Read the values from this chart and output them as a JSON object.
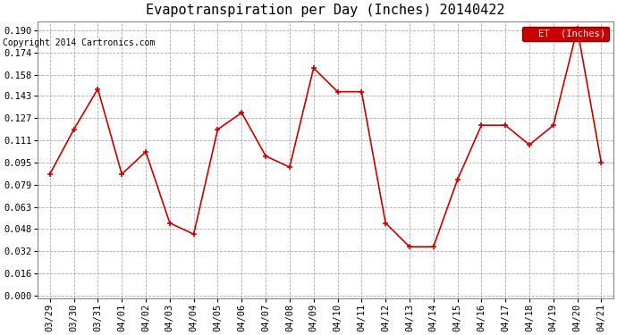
{
  "title": "Evapotranspiration per Day (Inches) 20140422",
  "copyright": "Copyright 2014 Cartronics.com",
  "legend_label": "ET  (Inches)",
  "x_labels": [
    "03/29",
    "03/30",
    "03/31",
    "04/01",
    "04/02",
    "04/03",
    "04/04",
    "04/05",
    "04/06",
    "04/07",
    "04/08",
    "04/09",
    "04/10",
    "04/11",
    "04/12",
    "04/13",
    "04/14",
    "04/15",
    "04/16",
    "04/17",
    "04/18",
    "04/19",
    "04/20",
    "04/21"
  ],
  "et_values": [
    0.087,
    0.119,
    0.148,
    0.087,
    0.103,
    0.052,
    0.044,
    0.119,
    0.131,
    0.1,
    0.092,
    0.163,
    0.146,
    0.146,
    0.052,
    0.035,
    0.035,
    0.083,
    0.122,
    0.122,
    0.108,
    0.122,
    0.191,
    0.095
  ],
  "ylim": [
    -0.002,
    0.196
  ],
  "yticks": [
    0.0,
    0.016,
    0.032,
    0.048,
    0.063,
    0.079,
    0.095,
    0.111,
    0.127,
    0.143,
    0.158,
    0.174,
    0.19
  ],
  "line_color": "#cc0000",
  "marker": "+",
  "marker_size": 5,
  "marker_lw": 1.2,
  "line_width": 1.2,
  "grid_color": "#aaaaaa",
  "grid_style": "--",
  "bg_color": "#ffffff",
  "legend_bg": "#cc0000",
  "legend_text_color": "#ffffff",
  "title_fontsize": 11,
  "copyright_fontsize": 7,
  "tick_fontsize": 7.5,
  "figsize": [
    6.9,
    3.75
  ],
  "dpi": 100
}
